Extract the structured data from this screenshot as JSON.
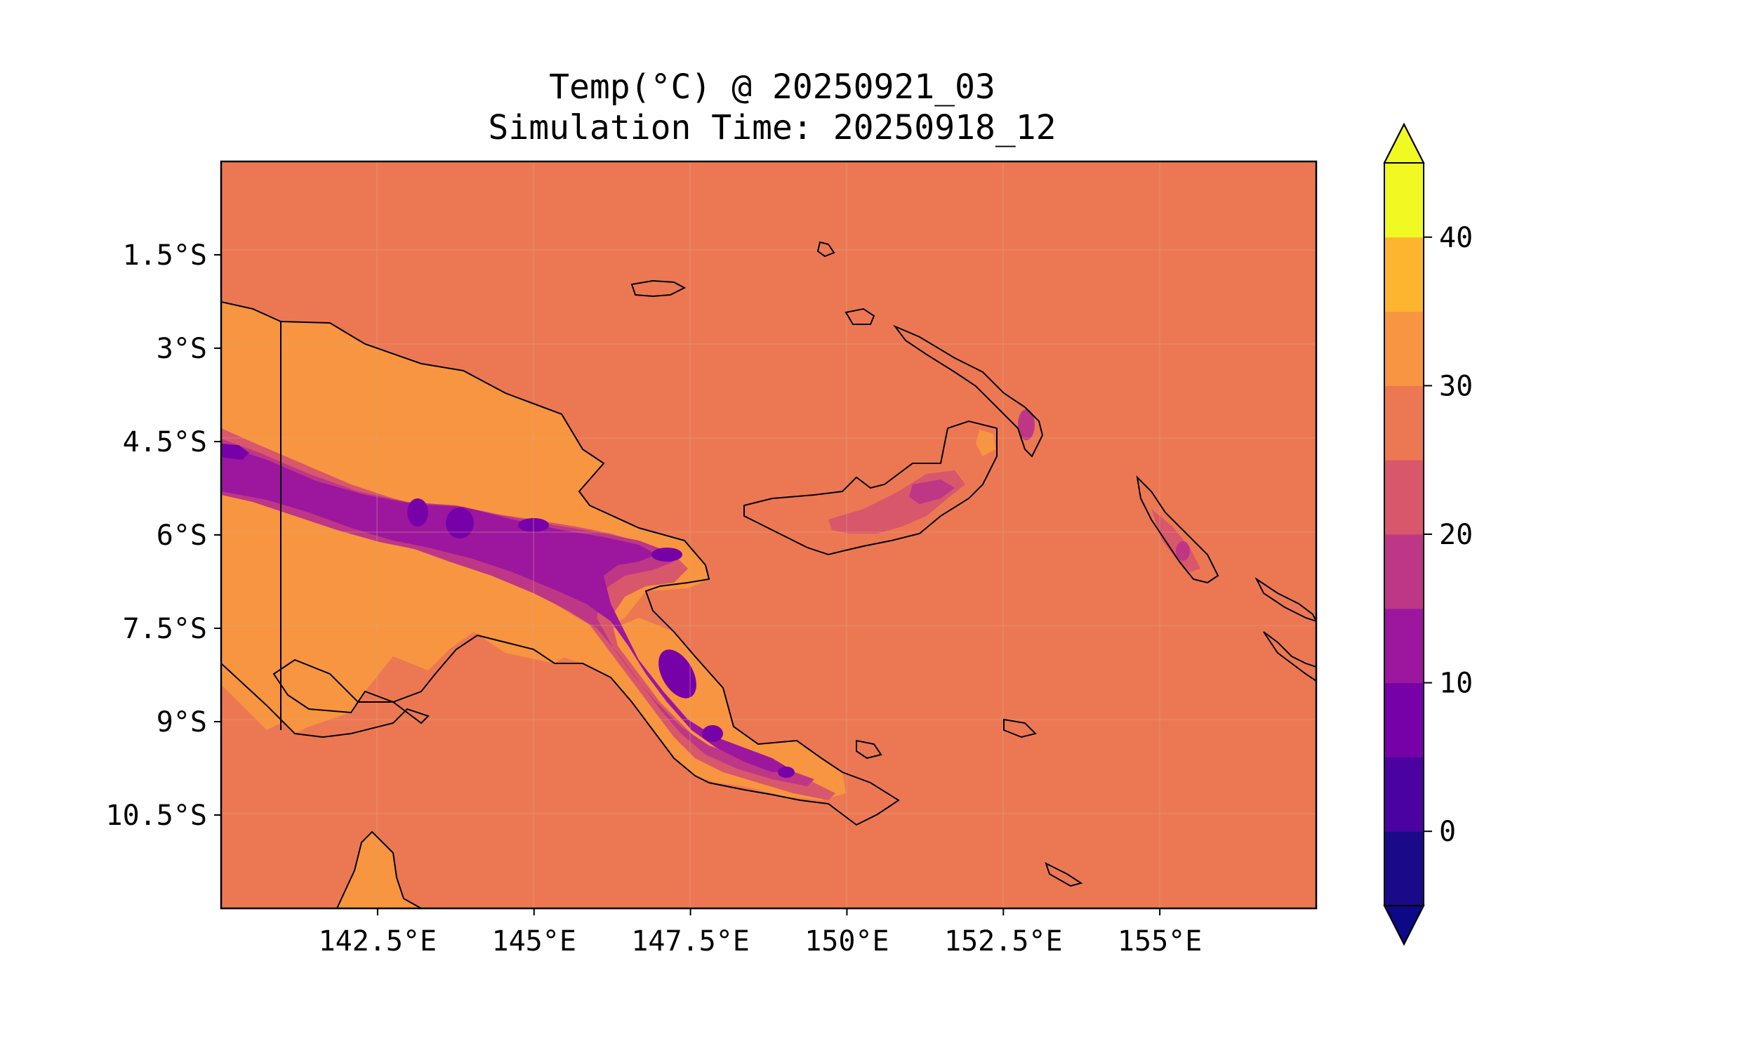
{
  "title": {
    "line1": "Temp(°C) @ 20250921_03",
    "line2": "Simulation Time: 20250918_12"
  },
  "chart_data": {
    "type": "heatmap",
    "title": "Temp(°C) @ 20250921_03\nSimulation Time: 20250918_12",
    "xlabel": "",
    "ylabel": "",
    "xlim": [
      140,
      157.5
    ],
    "ylim": [
      -12,
      0.0
    ],
    "x_ticks": [
      142.5,
      145,
      147.5,
      150,
      152.5,
      155
    ],
    "x_tick_labels": [
      "142.5°E",
      "145°E",
      "147.5°E",
      "150°E",
      "152.5°E",
      "155°E"
    ],
    "y_ticks": [
      -1.5,
      -3,
      -4.5,
      -6,
      -7.5,
      -9,
      -10.5
    ],
    "y_tick_labels": [
      "1.5°S",
      "3°S",
      "4.5°S",
      "6°S",
      "7.5°S",
      "9°S",
      "10.5°S"
    ],
    "grid": true,
    "colorbar": {
      "levels": [
        -5,
        0,
        5,
        10,
        15,
        20,
        25,
        30,
        35,
        40,
        45
      ],
      "tick_values": [
        0,
        10,
        20,
        30,
        40
      ],
      "tick_labels": [
        "0",
        "10",
        "20",
        "30",
        "40"
      ],
      "extend": "both",
      "colors": [
        "#1a0a8a",
        "#4a02a0",
        "#7701a8",
        "#9c179e",
        "#bd3786",
        "#d8576b",
        "#ec7853",
        "#f89540",
        "#fdb42f",
        "#f0f921"
      ],
      "under_color": "#0d0887",
      "over_color": "#f0f921"
    },
    "background_value_band": [
      25,
      30
    ],
    "colormap": "plasma"
  },
  "colors": {
    "ocean": "#ec7853",
    "lowland": "#f89540",
    "band_20_25": "#d8576b",
    "band_15_20": "#bd3786",
    "band_10_15": "#9c179e",
    "band_5_10": "#7701a8",
    "coast": "#000000"
  }
}
